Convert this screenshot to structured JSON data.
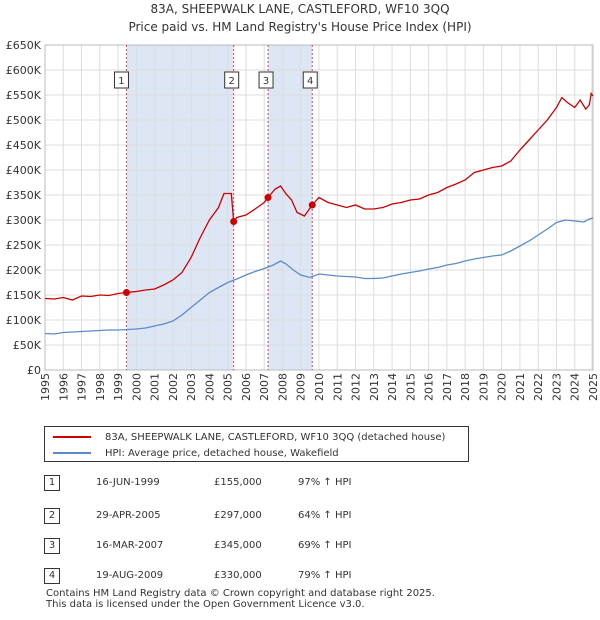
{
  "title": {
    "line1": "83A, SHEEPWALK LANE, CASTLEFORD, WF10 3QQ",
    "line2": "Price paid vs. HM Land Registry's House Price Index (HPI)"
  },
  "colors": {
    "property": "#cc0000",
    "hpi": "#5b8cc8",
    "band": "#dde6f5"
  },
  "chart_data": {
    "type": "line",
    "title": "Price paid vs. HM Land Registry's House Price Index (HPI)",
    "xlabel": "",
    "ylabel": "",
    "xlim": [
      1995,
      2025
    ],
    "ylim": [
      0,
      650000
    ],
    "y_ticks": [
      {
        "value": 0,
        "label": "£0"
      },
      {
        "value": 50000,
        "label": "£50K"
      },
      {
        "value": 100000,
        "label": "£100K"
      },
      {
        "value": 150000,
        "label": "£150K"
      },
      {
        "value": 200000,
        "label": "£200K"
      },
      {
        "value": 250000,
        "label": "£250K"
      },
      {
        "value": 300000,
        "label": "£300K"
      },
      {
        "value": 350000,
        "label": "£350K"
      },
      {
        "value": 400000,
        "label": "£400K"
      },
      {
        "value": 450000,
        "label": "£450K"
      },
      {
        "value": 500000,
        "label": "£500K"
      },
      {
        "value": 550000,
        "label": "£550K"
      },
      {
        "value": 600000,
        "label": "£600K"
      },
      {
        "value": 650000,
        "label": "£650K"
      }
    ],
    "x_ticks": [
      "1995",
      "1996",
      "1997",
      "1998",
      "1999",
      "2000",
      "2001",
      "2002",
      "2003",
      "2004",
      "2005",
      "2006",
      "2007",
      "2008",
      "2009",
      "2010",
      "2011",
      "2012",
      "2013",
      "2014",
      "2015",
      "2016",
      "2017",
      "2018",
      "2019",
      "2020",
      "2021",
      "2022",
      "2023",
      "2024",
      "2025"
    ],
    "grid": true,
    "series": [
      {
        "name": "83A, SHEEPWALK LANE, CASTLEFORD, WF10 3QQ (detached house)",
        "color": "#cc0000",
        "points": [
          [
            1995.0,
            143000
          ],
          [
            1995.5,
            142000
          ],
          [
            1996.0,
            145000
          ],
          [
            1996.5,
            140000
          ],
          [
            1997.0,
            148000
          ],
          [
            1997.5,
            147000
          ],
          [
            1998.0,
            150000
          ],
          [
            1998.5,
            149000
          ],
          [
            1999.0,
            153000
          ],
          [
            1999.46,
            155000
          ],
          [
            2000.0,
            157000
          ],
          [
            2000.5,
            160000
          ],
          [
            2001.0,
            162000
          ],
          [
            2001.5,
            170000
          ],
          [
            2002.0,
            180000
          ],
          [
            2002.5,
            195000
          ],
          [
            2003.0,
            225000
          ],
          [
            2003.5,
            265000
          ],
          [
            2004.0,
            300000
          ],
          [
            2004.5,
            325000
          ],
          [
            2004.8,
            353000
          ],
          [
            2005.2,
            353000
          ],
          [
            2005.33,
            297000
          ],
          [
            2005.5,
            305000
          ],
          [
            2006.0,
            310000
          ],
          [
            2006.5,
            322000
          ],
          [
            2007.0,
            335000
          ],
          [
            2007.21,
            345000
          ],
          [
            2007.6,
            362000
          ],
          [
            2007.9,
            368000
          ],
          [
            2008.2,
            352000
          ],
          [
            2008.5,
            340000
          ],
          [
            2008.8,
            315000
          ],
          [
            2009.2,
            308000
          ],
          [
            2009.4,
            318000
          ],
          [
            2009.63,
            330000
          ],
          [
            2010.0,
            345000
          ],
          [
            2010.5,
            335000
          ],
          [
            2011.0,
            330000
          ],
          [
            2011.5,
            325000
          ],
          [
            2012.0,
            330000
          ],
          [
            2012.5,
            322000
          ],
          [
            2013.0,
            322000
          ],
          [
            2013.5,
            325000
          ],
          [
            2014.0,
            332000
          ],
          [
            2014.5,
            335000
          ],
          [
            2015.0,
            340000
          ],
          [
            2015.5,
            342000
          ],
          [
            2016.0,
            350000
          ],
          [
            2016.5,
            355000
          ],
          [
            2017.0,
            365000
          ],
          [
            2017.5,
            372000
          ],
          [
            2018.0,
            380000
          ],
          [
            2018.5,
            395000
          ],
          [
            2019.0,
            400000
          ],
          [
            2019.5,
            405000
          ],
          [
            2020.0,
            408000
          ],
          [
            2020.5,
            418000
          ],
          [
            2021.0,
            440000
          ],
          [
            2021.5,
            460000
          ],
          [
            2022.0,
            480000
          ],
          [
            2022.5,
            500000
          ],
          [
            2023.0,
            525000
          ],
          [
            2023.3,
            545000
          ],
          [
            2023.6,
            535000
          ],
          [
            2024.0,
            525000
          ],
          [
            2024.3,
            540000
          ],
          [
            2024.6,
            522000
          ],
          [
            2024.8,
            530000
          ],
          [
            2024.9,
            553000
          ],
          [
            2025.0,
            548000
          ]
        ]
      },
      {
        "name": "HPI: Average price, detached house, Wakefield",
        "color": "#5b8cc8",
        "points": [
          [
            1995.0,
            73000
          ],
          [
            1995.5,
            72000
          ],
          [
            1996.0,
            75000
          ],
          [
            1996.5,
            76000
          ],
          [
            1997.0,
            77000
          ],
          [
            1997.5,
            78000
          ],
          [
            1998.0,
            79000
          ],
          [
            1998.5,
            80000
          ],
          [
            1999.0,
            80000
          ],
          [
            1999.5,
            81000
          ],
          [
            2000.0,
            82000
          ],
          [
            2000.5,
            84000
          ],
          [
            2001.0,
            88000
          ],
          [
            2001.5,
            92000
          ],
          [
            2002.0,
            98000
          ],
          [
            2002.5,
            110000
          ],
          [
            2003.0,
            125000
          ],
          [
            2003.5,
            140000
          ],
          [
            2004.0,
            155000
          ],
          [
            2004.5,
            165000
          ],
          [
            2005.0,
            175000
          ],
          [
            2005.5,
            182000
          ],
          [
            2006.0,
            190000
          ],
          [
            2006.5,
            197000
          ],
          [
            2007.0,
            203000
          ],
          [
            2007.5,
            210000
          ],
          [
            2007.9,
            218000
          ],
          [
            2008.2,
            212000
          ],
          [
            2008.6,
            200000
          ],
          [
            2009.0,
            190000
          ],
          [
            2009.5,
            185000
          ],
          [
            2010.0,
            192000
          ],
          [
            2010.5,
            190000
          ],
          [
            2011.0,
            188000
          ],
          [
            2011.5,
            187000
          ],
          [
            2012.0,
            186000
          ],
          [
            2012.5,
            183000
          ],
          [
            2013.0,
            183000
          ],
          [
            2013.5,
            184000
          ],
          [
            2014.0,
            188000
          ],
          [
            2014.5,
            192000
          ],
          [
            2015.0,
            195000
          ],
          [
            2015.5,
            198000
          ],
          [
            2016.0,
            202000
          ],
          [
            2016.5,
            205000
          ],
          [
            2017.0,
            210000
          ],
          [
            2017.5,
            213000
          ],
          [
            2018.0,
            218000
          ],
          [
            2018.5,
            222000
          ],
          [
            2019.0,
            225000
          ],
          [
            2019.5,
            228000
          ],
          [
            2020.0,
            230000
          ],
          [
            2020.5,
            238000
          ],
          [
            2021.0,
            248000
          ],
          [
            2021.5,
            258000
          ],
          [
            2022.0,
            270000
          ],
          [
            2022.5,
            282000
          ],
          [
            2023.0,
            295000
          ],
          [
            2023.5,
            300000
          ],
          [
            2024.0,
            298000
          ],
          [
            2024.5,
            296000
          ],
          [
            2024.8,
            302000
          ],
          [
            2025.0,
            304000
          ]
        ]
      }
    ],
    "sales": [
      {
        "label": "1",
        "x": 1999.46,
        "y": 155000
      },
      {
        "label": "2",
        "x": 2005.33,
        "y": 297000
      },
      {
        "label": "3",
        "x": 2007.21,
        "y": 345000
      },
      {
        "label": "4",
        "x": 2009.63,
        "y": 330000
      }
    ],
    "shaded_ranges": [
      [
        1999.46,
        2005.33
      ],
      [
        2007.21,
        2009.63
      ]
    ]
  },
  "legend": {
    "property_label": "83A, SHEEPWALK LANE, CASTLEFORD, WF10 3QQ (detached house)",
    "hpi_label": "HPI: Average price, detached house, Wakefield"
  },
  "transactions": [
    {
      "num": "1",
      "date": "16-JUN-1999",
      "price": "£155,000",
      "hpi": "97% ↑ HPI"
    },
    {
      "num": "2",
      "date": "29-APR-2005",
      "price": "£297,000",
      "hpi": "64% ↑ HPI"
    },
    {
      "num": "3",
      "date": "16-MAR-2007",
      "price": "£345,000",
      "hpi": "69% ↑ HPI"
    },
    {
      "num": "4",
      "date": "19-AUG-2009",
      "price": "£330,000",
      "hpi": "79% ↑ HPI"
    }
  ],
  "footer": {
    "line1": "Contains HM Land Registry data © Crown copyright and database right 2025.",
    "line2": "This data is licensed under the Open Government Licence v3.0."
  }
}
